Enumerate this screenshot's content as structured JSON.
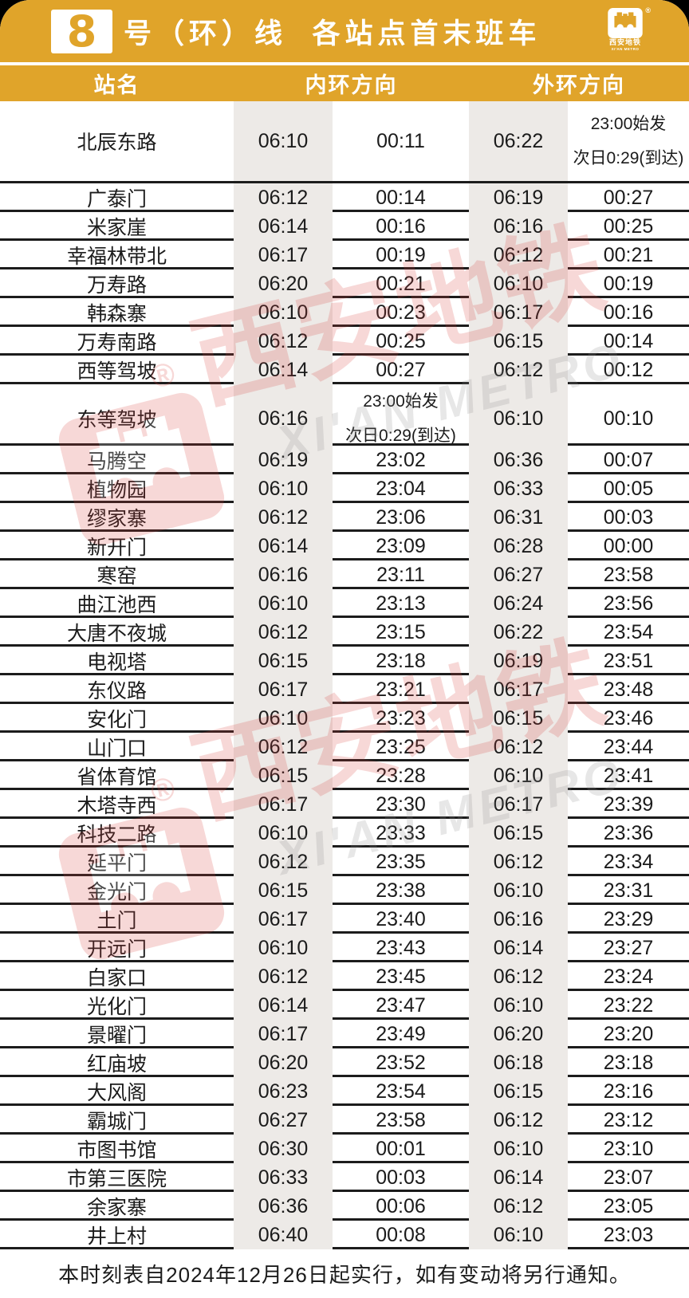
{
  "theme": {
    "gold": "#E0A42A",
    "stripe": "#EDEAE7",
    "border_black": "#1C1C1C",
    "watermark_red": "#D9423E",
    "watermark_gray": "#8C8C8C",
    "card_background": "#FFFFFF",
    "page_background": "#000000"
  },
  "header": {
    "line_number": "8",
    "title": "号（环）线  各站点首末班车",
    "logo_cn": "西安地铁",
    "logo_en": "XI'AN METRO",
    "registered_mark": "®"
  },
  "columns": {
    "station": "站名",
    "inner": "内环方向",
    "outer": "外环方向"
  },
  "stations": [
    {
      "name": "北辰东路",
      "inner_first": "06:10",
      "inner_last": "00:11",
      "outer_first": "06:22",
      "outer_last": "23:00始发\n次日0:29(到达)",
      "row": "tall-a"
    },
    {
      "name": "广泰门",
      "inner_first": "06:12",
      "inner_last": "00:14",
      "outer_first": "06:19",
      "outer_last": "00:27"
    },
    {
      "name": "米家崖",
      "inner_first": "06:14",
      "inner_last": "00:16",
      "outer_first": "06:16",
      "outer_last": "00:25"
    },
    {
      "name": "幸福林带北",
      "inner_first": "06:17",
      "inner_last": "00:19",
      "outer_first": "06:12",
      "outer_last": "00:21"
    },
    {
      "name": "万寿路",
      "inner_first": "06:20",
      "inner_last": "00:21",
      "outer_first": "06:10",
      "outer_last": "00:19"
    },
    {
      "name": "韩森寨",
      "inner_first": "06:10",
      "inner_last": "00:23",
      "outer_first": "06:17",
      "outer_last": "00:16"
    },
    {
      "name": "万寿南路",
      "inner_first": "06:12",
      "inner_last": "00:25",
      "outer_first": "06:15",
      "outer_last": "00:14"
    },
    {
      "name": "西等驾坡",
      "inner_first": "06:14",
      "inner_last": "00:27",
      "outer_first": "06:12",
      "outer_last": "00:12"
    },
    {
      "name": "东等驾坡",
      "inner_first": "06:16",
      "inner_last": "23:00始发\n次日0:29(到达)",
      "outer_first": "06:10",
      "outer_last": "00:10",
      "row": "tall-b"
    },
    {
      "name": "马腾空",
      "inner_first": "06:19",
      "inner_last": "23:02",
      "outer_first": "06:36",
      "outer_last": "00:07"
    },
    {
      "name": "植物园",
      "inner_first": "06:10",
      "inner_last": "23:04",
      "outer_first": "06:33",
      "outer_last": "00:05"
    },
    {
      "name": "缪家寨",
      "inner_first": "06:12",
      "inner_last": "23:06",
      "outer_first": "06:31",
      "outer_last": "00:03"
    },
    {
      "name": "新开门",
      "inner_first": "06:14",
      "inner_last": "23:09",
      "outer_first": "06:28",
      "outer_last": "00:00"
    },
    {
      "name": "寒窑",
      "inner_first": "06:16",
      "inner_last": "23:11",
      "outer_first": "06:27",
      "outer_last": "23:58"
    },
    {
      "name": "曲江池西",
      "inner_first": "06:10",
      "inner_last": "23:13",
      "outer_first": "06:24",
      "outer_last": "23:56"
    },
    {
      "name": "大唐不夜城",
      "inner_first": "06:12",
      "inner_last": "23:15",
      "outer_first": "06:22",
      "outer_last": "23:54"
    },
    {
      "name": "电视塔",
      "inner_first": "06:15",
      "inner_last": "23:18",
      "outer_first": "06:19",
      "outer_last": "23:51"
    },
    {
      "name": "东仪路",
      "inner_first": "06:17",
      "inner_last": "23:21",
      "outer_first": "06:17",
      "outer_last": "23:48"
    },
    {
      "name": "安化门",
      "inner_first": "06:10",
      "inner_last": "23:23",
      "outer_first": "06:15",
      "outer_last": "23:46"
    },
    {
      "name": "山门口",
      "inner_first": "06:12",
      "inner_last": "23:25",
      "outer_first": "06:12",
      "outer_last": "23:44"
    },
    {
      "name": "省体育馆",
      "inner_first": "06:15",
      "inner_last": "23:28",
      "outer_first": "06:10",
      "outer_last": "23:41"
    },
    {
      "name": "木塔寺西",
      "inner_first": "06:17",
      "inner_last": "23:30",
      "outer_first": "06:17",
      "outer_last": "23:39"
    },
    {
      "name": "科技二路",
      "inner_first": "06:10",
      "inner_last": "23:33",
      "outer_first": "06:15",
      "outer_last": "23:36"
    },
    {
      "name": "延平门",
      "inner_first": "06:12",
      "inner_last": "23:35",
      "outer_first": "06:12",
      "outer_last": "23:34"
    },
    {
      "name": "金光门",
      "inner_first": "06:15",
      "inner_last": "23:38",
      "outer_first": "06:10",
      "outer_last": "23:31"
    },
    {
      "name": "土门",
      "inner_first": "06:17",
      "inner_last": "23:40",
      "outer_first": "06:16",
      "outer_last": "23:29"
    },
    {
      "name": "开远门",
      "inner_first": "06:10",
      "inner_last": "23:43",
      "outer_first": "06:14",
      "outer_last": "23:27"
    },
    {
      "name": "白家口",
      "inner_first": "06:12",
      "inner_last": "23:45",
      "outer_first": "06:12",
      "outer_last": "23:24"
    },
    {
      "name": "光化门",
      "inner_first": "06:14",
      "inner_last": "23:47",
      "outer_first": "06:10",
      "outer_last": "23:22"
    },
    {
      "name": "景曜门",
      "inner_first": "06:17",
      "inner_last": "23:49",
      "outer_first": "06:20",
      "outer_last": "23:20"
    },
    {
      "name": "红庙坡",
      "inner_first": "06:20",
      "inner_last": "23:52",
      "outer_first": "06:18",
      "outer_last": "23:18"
    },
    {
      "name": "大风阁",
      "inner_first": "06:23",
      "inner_last": "23:54",
      "outer_first": "06:15",
      "outer_last": "23:16"
    },
    {
      "name": "霸城门",
      "inner_first": "06:27",
      "inner_last": "23:58",
      "outer_first": "06:12",
      "outer_last": "23:12"
    },
    {
      "name": "市图书馆",
      "inner_first": "06:30",
      "inner_last": "00:01",
      "outer_first": "06:10",
      "outer_last": "23:10"
    },
    {
      "name": "市第三医院",
      "inner_first": "06:33",
      "inner_last": "00:03",
      "outer_first": "06:14",
      "outer_last": "23:07"
    },
    {
      "name": "余家寨",
      "inner_first": "06:36",
      "inner_last": "00:06",
      "outer_first": "06:12",
      "outer_last": "23:05"
    },
    {
      "name": "井上村",
      "inner_first": "06:40",
      "inner_last": "00:08",
      "outer_first": "06:10",
      "outer_last": "23:03"
    }
  ],
  "footer": {
    "note": "本时刻表自2024年12月26日起实行，如有变动将另行通知。"
  },
  "watermark": {
    "cn": "西安地铁",
    "en": "XI'AN METRO",
    "registered_mark": "®"
  }
}
